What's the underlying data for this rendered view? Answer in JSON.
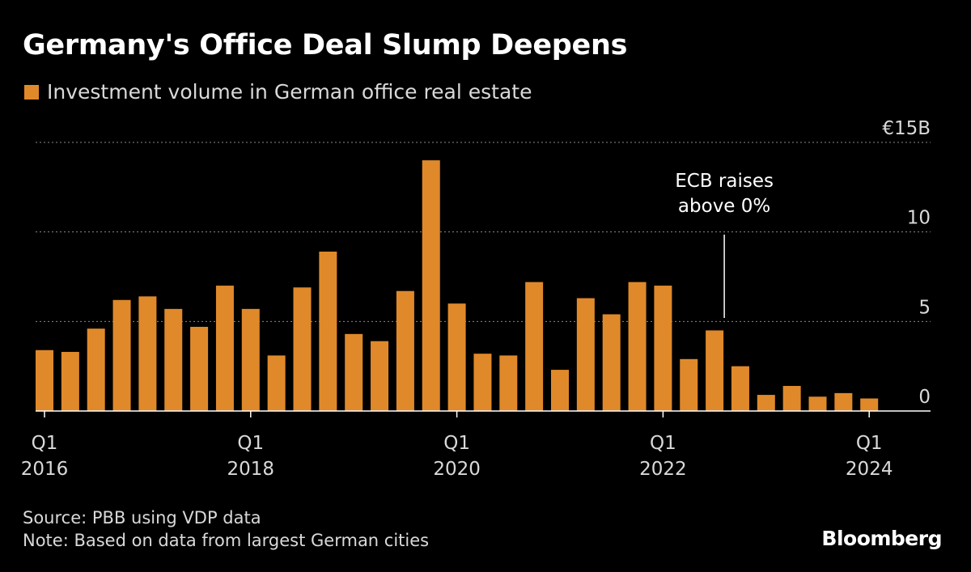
{
  "title": "Germany's Office Deal Slump Deepens",
  "legend": {
    "label": "Investment volume in German office real estate"
  },
  "colors": {
    "bar": "#E0892A",
    "background": "#000000",
    "grid": "#8a8a8a",
    "text": "#d9d9d9"
  },
  "chart_data": {
    "type": "bar",
    "title": "Germany's Office Deal Slump Deepens",
    "series": [
      {
        "name": "Investment volume in German office real estate",
        "values": [
          3.4,
          3.3,
          4.6,
          6.2,
          6.4,
          5.7,
          4.7,
          7.0,
          5.7,
          3.1,
          6.9,
          8.9,
          4.3,
          3.9,
          6.7,
          14.0,
          6.0,
          3.2,
          3.1,
          7.2,
          2.3,
          6.3,
          5.4,
          7.2,
          7.0,
          2.9,
          4.5,
          2.5,
          0.9,
          1.4,
          0.8,
          1.0,
          0.7
        ]
      }
    ],
    "x_start": "Q1 2016",
    "x_end": "Q1 2024",
    "x_ticks": [
      {
        "index": 0,
        "line1": "Q1",
        "line2": "2016"
      },
      {
        "index": 8,
        "line1": "Q1",
        "line2": "2018"
      },
      {
        "index": 16,
        "line1": "Q1",
        "line2": "2020"
      },
      {
        "index": 24,
        "line1": "Q1",
        "line2": "2022"
      },
      {
        "index": 32,
        "line1": "Q1",
        "line2": "2024"
      }
    ],
    "y_ticks": [
      {
        "value": 15,
        "label": "€15B"
      },
      {
        "value": 10,
        "label": "10"
      },
      {
        "value": 5,
        "label": "5"
      },
      {
        "value": 0,
        "label": "0"
      }
    ],
    "ylim": [
      0,
      15
    ],
    "grid": true,
    "annotation": {
      "index": 26,
      "lines": [
        "ECB raises",
        "above 0%"
      ]
    }
  },
  "footer": {
    "source": "Source: PBB using VDP data",
    "note": "Note: Based on data from largest German cities"
  },
  "brand": "Bloomberg"
}
